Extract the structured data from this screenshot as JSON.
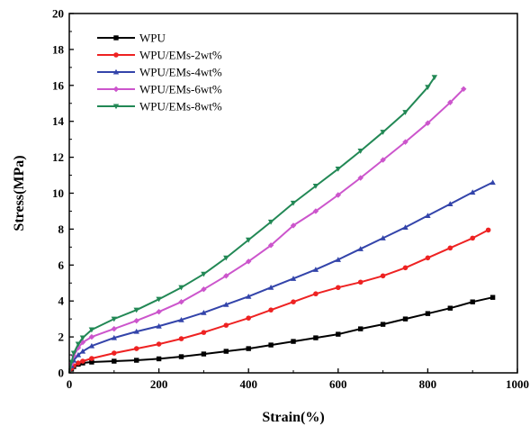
{
  "chart_data": {
    "type": "line",
    "xlabel": "Strain(%)",
    "ylabel": "Stress(MPa)",
    "xlim": [
      0,
      1000
    ],
    "ylim": [
      0,
      20
    ],
    "x_ticks": [
      "0",
      "200",
      "400",
      "600",
      "800",
      "1000"
    ],
    "y_ticks": [
      "0",
      "2",
      "4",
      "6",
      "8",
      "10",
      "12",
      "14",
      "16",
      "18",
      "20"
    ],
    "grid": false,
    "legend_position": "top-left",
    "series": [
      {
        "name": "WPU",
        "color": "#000000",
        "marker": "square",
        "x": [
          0,
          5,
          10,
          20,
          30,
          50,
          100,
          150,
          200,
          250,
          300,
          350,
          400,
          450,
          500,
          550,
          600,
          650,
          700,
          750,
          800,
          850,
          900,
          945
        ],
        "y": [
          0,
          0.2,
          0.35,
          0.48,
          0.55,
          0.6,
          0.65,
          0.7,
          0.78,
          0.9,
          1.05,
          1.2,
          1.35,
          1.55,
          1.75,
          1.95,
          2.15,
          2.45,
          2.7,
          3.0,
          3.3,
          3.6,
          3.95,
          4.2
        ]
      },
      {
        "name": "WPU/EMs-2wt%",
        "color": "#ee2222",
        "marker": "circle",
        "x": [
          0,
          5,
          10,
          20,
          30,
          50,
          100,
          150,
          200,
          250,
          300,
          350,
          400,
          450,
          500,
          550,
          600,
          650,
          700,
          750,
          800,
          850,
          900,
          935
        ],
        "y": [
          0,
          0.25,
          0.4,
          0.55,
          0.65,
          0.8,
          1.1,
          1.35,
          1.6,
          1.9,
          2.25,
          2.65,
          3.05,
          3.5,
          3.95,
          4.4,
          4.75,
          5.05,
          5.4,
          5.85,
          6.4,
          6.95,
          7.5,
          7.95
        ]
      },
      {
        "name": "WPU/EMs-4wt%",
        "color": "#3344aa",
        "marker": "triangle",
        "x": [
          0,
          5,
          10,
          20,
          30,
          50,
          100,
          150,
          200,
          250,
          300,
          350,
          400,
          450,
          500,
          550,
          600,
          650,
          700,
          750,
          800,
          850,
          900,
          945
        ],
        "y": [
          0,
          0.4,
          0.7,
          1.0,
          1.2,
          1.5,
          1.95,
          2.3,
          2.6,
          2.95,
          3.35,
          3.8,
          4.25,
          4.75,
          5.25,
          5.75,
          6.3,
          6.9,
          7.5,
          8.1,
          8.75,
          9.4,
          10.05,
          10.6
        ]
      },
      {
        "name": "WPU/EMs-6wt%",
        "color": "#cc55cc",
        "marker": "diamond",
        "x": [
          0,
          5,
          10,
          20,
          30,
          50,
          100,
          150,
          200,
          250,
          300,
          350,
          400,
          450,
          500,
          550,
          600,
          650,
          700,
          750,
          800,
          850,
          880
        ],
        "y": [
          0,
          0.5,
          0.95,
          1.4,
          1.7,
          2.0,
          2.45,
          2.9,
          3.4,
          3.95,
          4.65,
          5.4,
          6.2,
          7.1,
          8.2,
          9.0,
          9.9,
          10.85,
          11.85,
          12.85,
          13.9,
          15.05,
          15.8
        ]
      },
      {
        "name": "WPU/EMs-8wt%",
        "color": "#228855",
        "marker": "triangle-down",
        "x": [
          0,
          5,
          10,
          20,
          30,
          50,
          100,
          150,
          200,
          250,
          300,
          350,
          400,
          450,
          500,
          550,
          600,
          650,
          700,
          750,
          800,
          815
        ],
        "y": [
          0,
          0.6,
          1.1,
          1.6,
          1.95,
          2.4,
          3.0,
          3.5,
          4.1,
          4.75,
          5.5,
          6.4,
          7.4,
          8.4,
          9.45,
          10.4,
          11.35,
          12.35,
          13.4,
          14.5,
          15.9,
          16.45
        ]
      }
    ]
  }
}
